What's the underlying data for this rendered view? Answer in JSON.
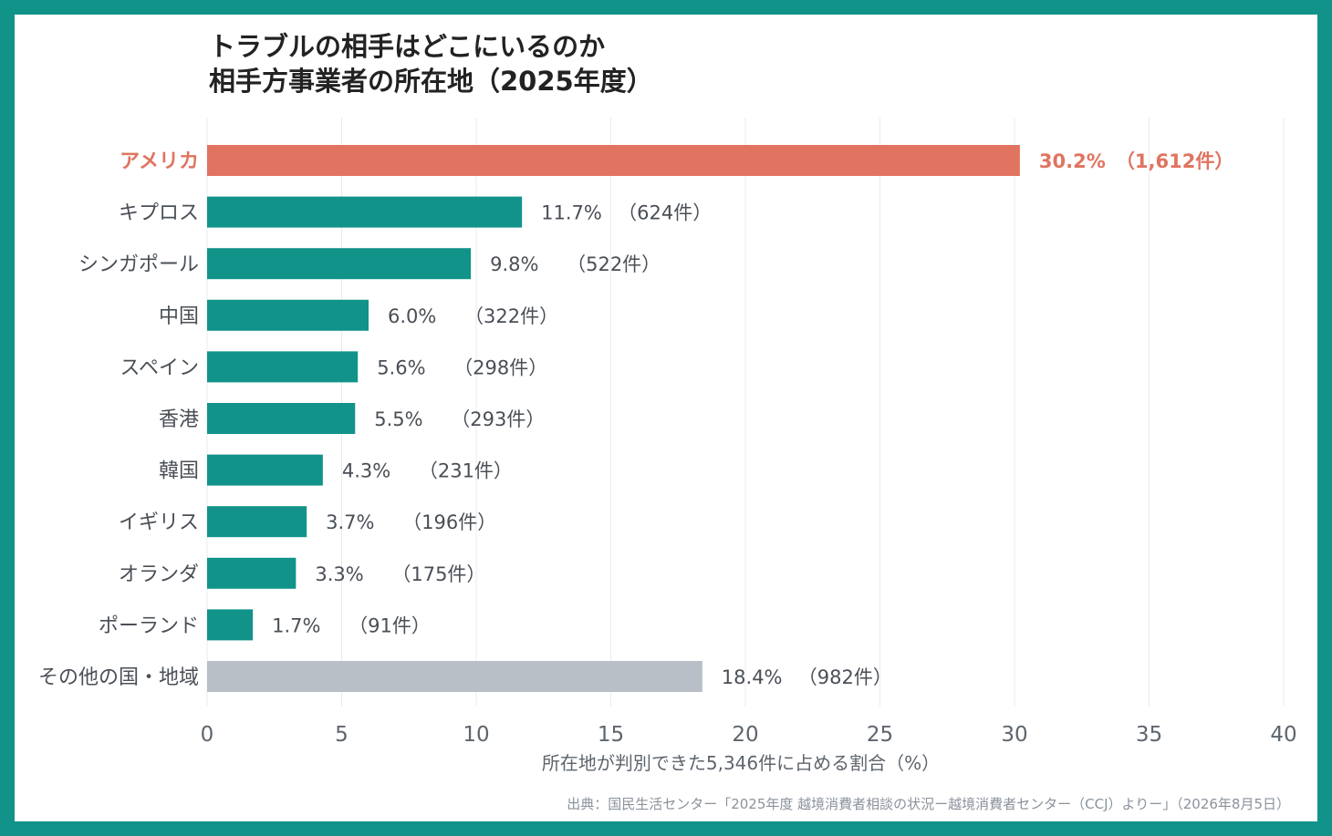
{
  "header": {
    "title_line1": "トラブルの相手はどこにいるのか",
    "title_line2": "相手方事業者の所在地（2025年度）"
  },
  "source": "出典：国民生活センター「2025年度 越境消費者相談の状況ー越境消費者センター（CCJ）よりー」（2026年8月5日）",
  "colors": {
    "frame": "#11938a",
    "highlight": "#e07460",
    "bar": "#11938a",
    "other": "#b8bfc6",
    "text": "#4a4f56",
    "grid": "#e8ebee"
  },
  "chart_data": {
    "type": "bar",
    "orientation": "horizontal",
    "categories": [
      "アメリカ",
      "キプロス",
      "シンガポール",
      "中国",
      "スペイン",
      "香港",
      "韓国",
      "イギリス",
      "オランダ",
      "ポーランド",
      "その他の国・地域"
    ],
    "values": [
      30.2,
      11.7,
      9.8,
      6.0,
      5.6,
      5.5,
      4.3,
      3.7,
      3.3,
      1.7,
      18.4
    ],
    "value_labels": [
      "30.2%",
      "11.7%",
      "9.8%",
      "6.0%",
      "5.6%",
      "5.5%",
      "4.3%",
      "3.7%",
      "3.3%",
      "1.7%",
      "18.4%"
    ],
    "count_labels": [
      "（1,612件）",
      "（624件）",
      "（522件）",
      "（322件）",
      "（298件）",
      "（293件）",
      "（231件）",
      "（196件）",
      "（175件）",
      "（91件）",
      "（982件）"
    ],
    "highlight_index": 0,
    "other_index": 10,
    "xlabel": "所在地が判別できた5,346件に占める割合（%）",
    "ylabel": "",
    "xlim": [
      0,
      40
    ],
    "xticks": [
      0,
      5,
      10,
      15,
      20,
      25,
      30,
      35,
      40
    ],
    "grid": true,
    "legend": "none"
  }
}
